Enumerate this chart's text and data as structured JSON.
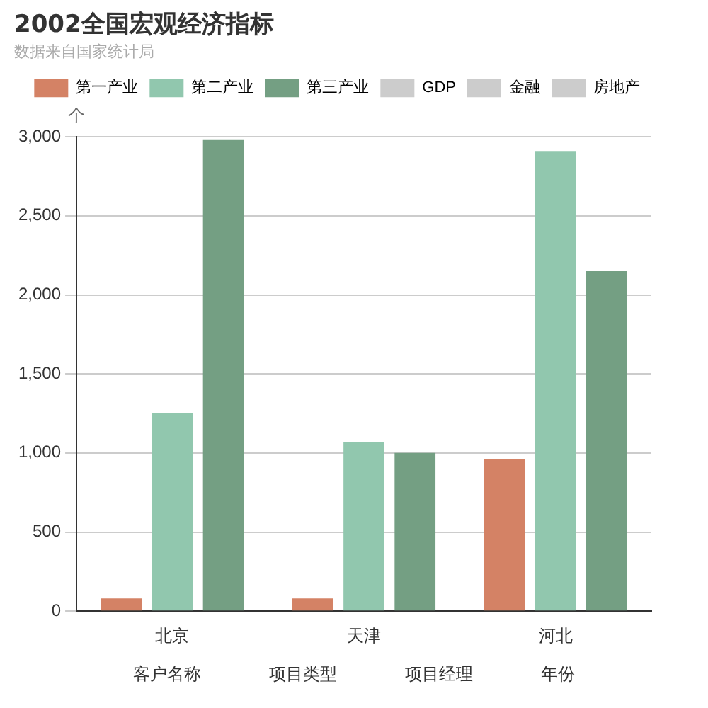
{
  "chart_data": {
    "type": "bar",
    "title": "2002全国宏观经济指标",
    "subtitle": "数据来自国家统计局",
    "ylabel": "个",
    "categories": [
      "北京",
      "天津",
      "河北"
    ],
    "series": [
      {
        "name": "第一产业",
        "color": "#d48265",
        "values": [
          80,
          80,
          960
        ]
      },
      {
        "name": "第二产业",
        "color": "#91c7ae",
        "values": [
          1250,
          1070,
          2910
        ]
      },
      {
        "name": "第三产业",
        "color": "#749f83",
        "values": [
          2980,
          1000,
          2150
        ]
      },
      {
        "name": "GDP",
        "color": "#cccccc",
        "values": [
          null,
          null,
          null
        ]
      },
      {
        "name": "金融",
        "color": "#cccccc",
        "values": [
          null,
          null,
          null
        ]
      },
      {
        "name": "房地产",
        "color": "#cccccc",
        "values": [
          null,
          null,
          null
        ]
      }
    ],
    "ylim": [
      0,
      3000
    ],
    "yticks": [
      {
        "value": 0,
        "label": "0"
      },
      {
        "value": 500,
        "label": "500"
      },
      {
        "value": 1000,
        "label": "1,000"
      },
      {
        "value": 1500,
        "label": "1,500"
      },
      {
        "value": 2000,
        "label": "2,000"
      },
      {
        "value": 2500,
        "label": "2,500"
      },
      {
        "value": 3000,
        "label": "3,000"
      }
    ],
    "grid": "y",
    "legend": "top right",
    "annotations": [
      "客户名称",
      "项目类型",
      "项目经理",
      "年份"
    ]
  }
}
